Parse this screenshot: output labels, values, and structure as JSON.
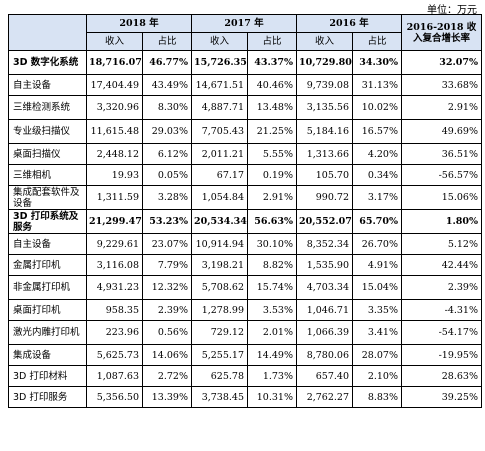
{
  "unit_label": "单位：万元",
  "headers": {
    "category": "",
    "years": [
      "2018 年",
      "2017 年",
      "2016 年"
    ],
    "growth": "2016-2018 收入复合增长率",
    "sub": [
      "收入",
      "占比",
      "收入",
      "占比",
      "收入",
      "占比"
    ]
  },
  "rows": [
    {
      "label": "3D 数字化系统",
      "bold": true,
      "tall": true,
      "v": [
        "18,716.07",
        "46.77%",
        "15,726.35",
        "43.37%",
        "10,729.80",
        "34.30%",
        "32.07%"
      ]
    },
    {
      "label": "自主设备",
      "bold": false,
      "tall": false,
      "v": [
        "17,404.49",
        "43.49%",
        "14,671.51",
        "40.46%",
        "9,739.08",
        "31.13%",
        "33.68%"
      ]
    },
    {
      "label": "三维检测系统",
      "bold": false,
      "tall": true,
      "v": [
        "3,320.96",
        "8.30%",
        "4,887.71",
        "13.48%",
        "3,135.56",
        "10.02%",
        "2.91%"
      ]
    },
    {
      "label": "专业级扫描仪",
      "bold": false,
      "tall": true,
      "v": [
        "11,615.48",
        "29.03%",
        "7,705.43",
        "21.25%",
        "5,184.16",
        "16.57%",
        "49.69%"
      ]
    },
    {
      "label": "桌面扫描仪",
      "bold": false,
      "tall": false,
      "v": [
        "2,448.12",
        "6.12%",
        "2,011.21",
        "5.55%",
        "1,313.66",
        "4.20%",
        "36.51%"
      ]
    },
    {
      "label": "三维相机",
      "bold": false,
      "tall": false,
      "v": [
        "19.93",
        "0.05%",
        "67.17",
        "0.19%",
        "105.70",
        "0.34%",
        "-56.57%"
      ]
    },
    {
      "label": "集成配套软件及设备",
      "bold": false,
      "tall": true,
      "v": [
        "1,311.59",
        "3.28%",
        "1,054.84",
        "2.91%",
        "990.72",
        "3.17%",
        "15.06%"
      ]
    },
    {
      "label": "3D 打印系统及服务",
      "bold": true,
      "tall": true,
      "v": [
        "21,299.47",
        "53.23%",
        "20,534.34",
        "56.63%",
        "20,552.07",
        "65.70%",
        "1.80%"
      ]
    },
    {
      "label": "自主设备",
      "bold": false,
      "tall": false,
      "v": [
        "9,229.61",
        "23.07%",
        "10,914.94",
        "30.10%",
        "8,352.34",
        "26.70%",
        "5.12%"
      ]
    },
    {
      "label": "金属打印机",
      "bold": false,
      "tall": false,
      "v": [
        "3,116.08",
        "7.79%",
        "3,198.21",
        "8.82%",
        "1,535.90",
        "4.91%",
        "42.44%"
      ]
    },
    {
      "label": "非金属打印机",
      "bold": false,
      "tall": true,
      "v": [
        "4,931.23",
        "12.32%",
        "5,708.62",
        "15.74%",
        "4,703.34",
        "15.04%",
        "2.39%"
      ]
    },
    {
      "label": "桌面打印机",
      "bold": false,
      "tall": false,
      "v": [
        "958.35",
        "2.39%",
        "1,278.99",
        "3.53%",
        "1,046.71",
        "3.35%",
        "-4.31%"
      ]
    },
    {
      "label": "激光内雕打印机",
      "bold": false,
      "tall": true,
      "v": [
        "223.96",
        "0.56%",
        "729.12",
        "2.01%",
        "1,066.39",
        "3.41%",
        "-54.17%"
      ]
    },
    {
      "label": "集成设备",
      "bold": false,
      "tall": false,
      "v": [
        "5,625.73",
        "14.06%",
        "5,255.17",
        "14.49%",
        "8,780.06",
        "28.07%",
        "-19.95%"
      ]
    },
    {
      "label": "3D 打印材料",
      "bold": false,
      "tall": false,
      "v": [
        "1,087.63",
        "2.72%",
        "625.78",
        "1.73%",
        "657.40",
        "2.10%",
        "28.63%"
      ]
    },
    {
      "label": "3D 打印服务",
      "bold": false,
      "tall": false,
      "v": [
        "5,356.50",
        "13.39%",
        "3,738.45",
        "10.31%",
        "2,762.27",
        "8.83%",
        "39.25%"
      ]
    }
  ]
}
